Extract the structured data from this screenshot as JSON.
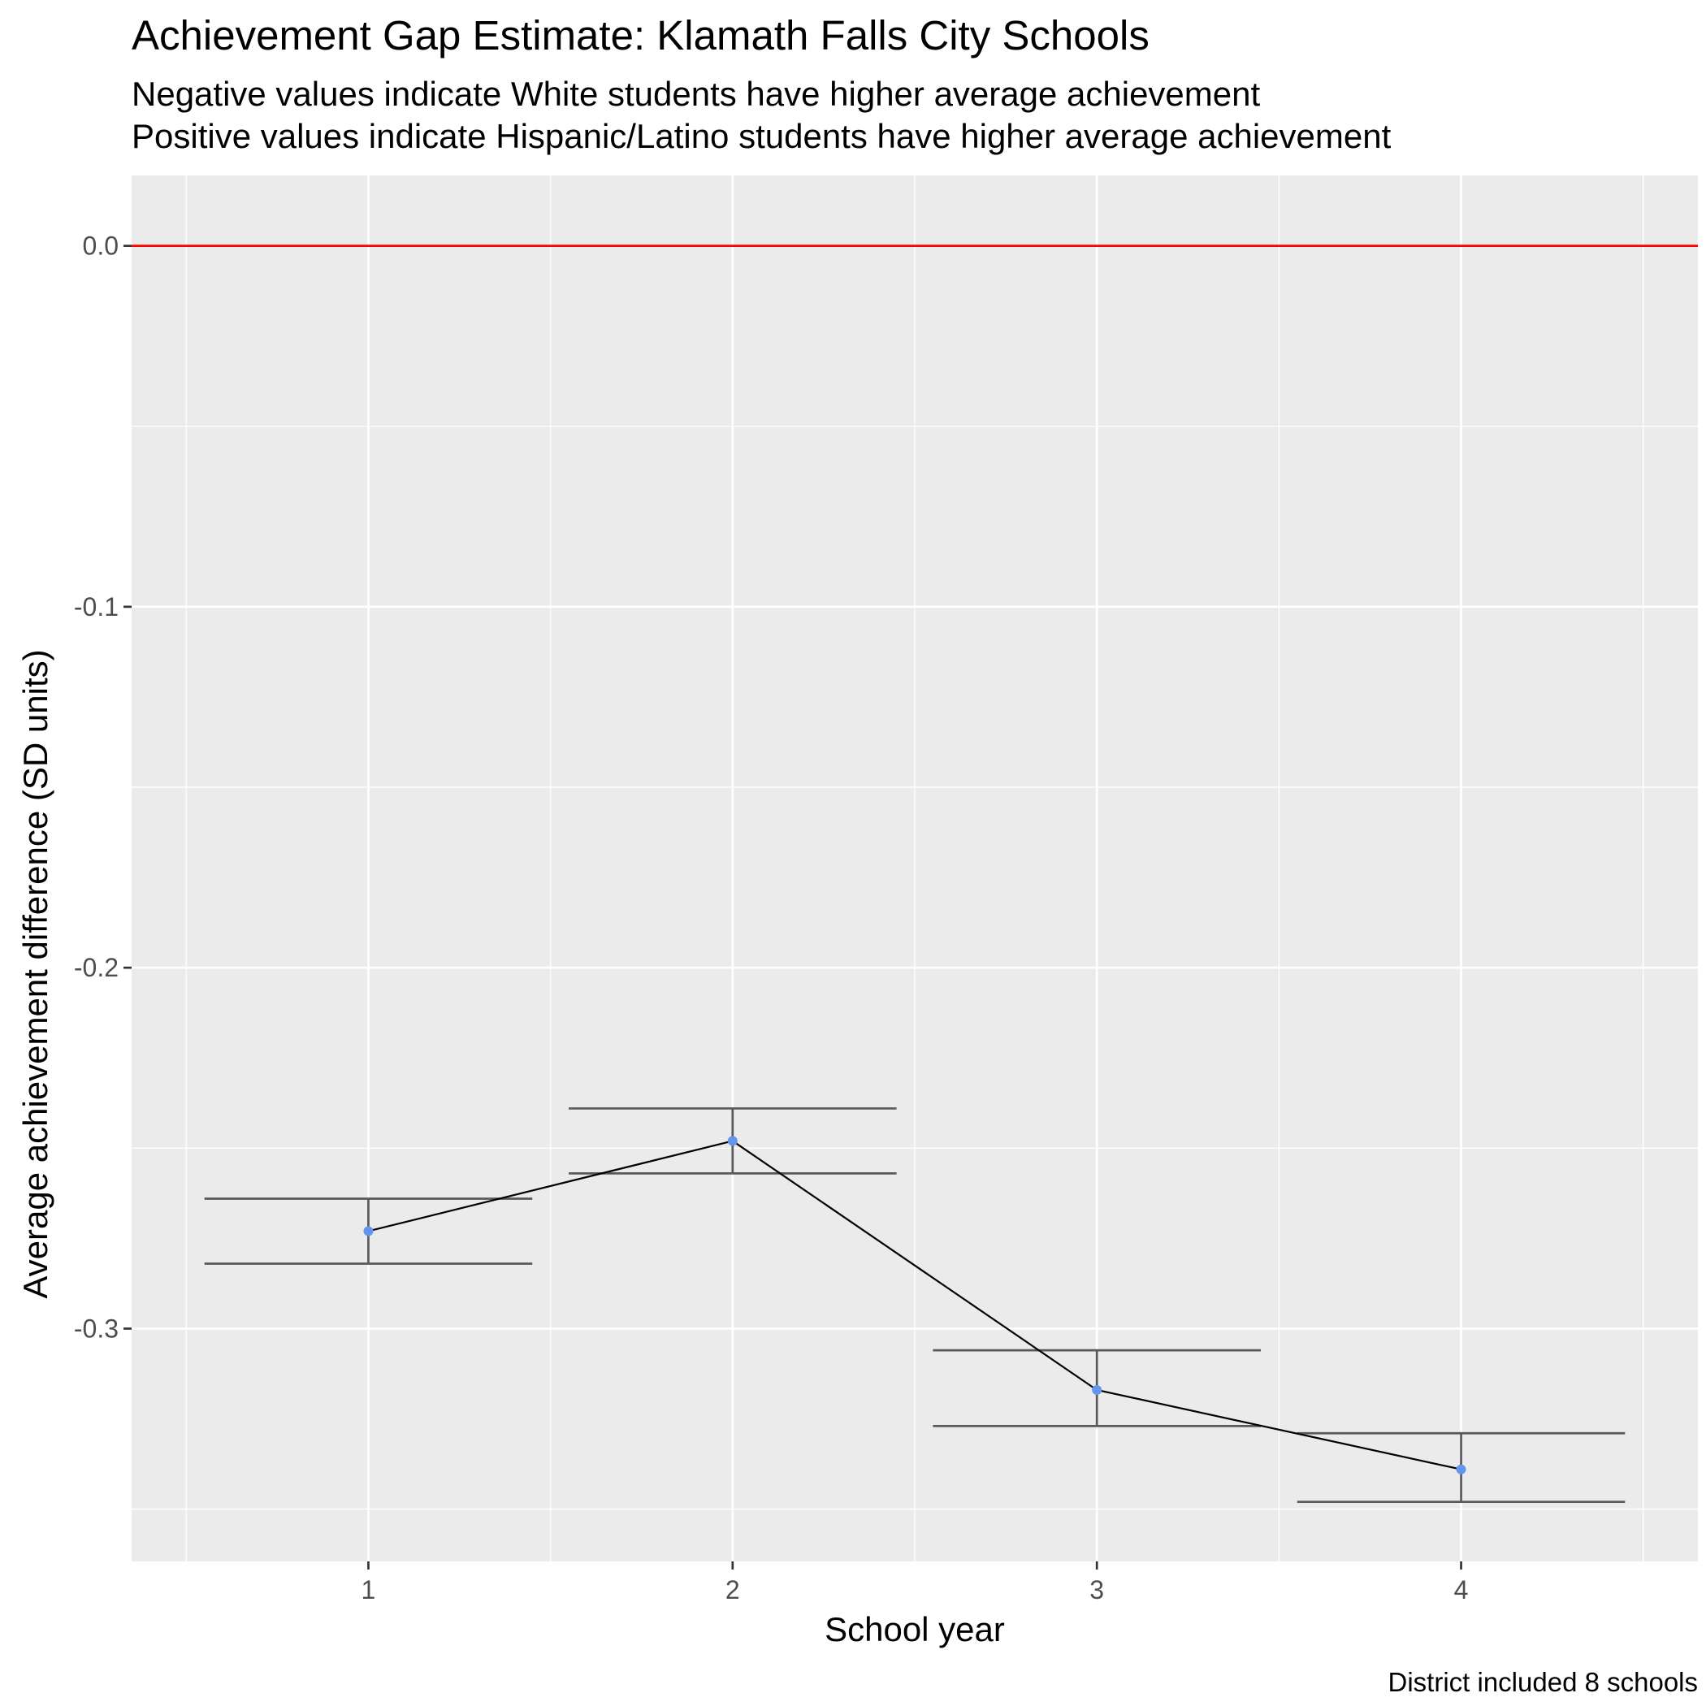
{
  "chart_data": {
    "type": "line",
    "title": "Achievement Gap Estimate: Klamath Falls City Schools",
    "subtitle": [
      "Negative values indicate White students have higher average achievement",
      "Positive values indicate Hispanic/Latino students have higher average achievement"
    ],
    "caption": "District included 8 schools",
    "xlabel": "School year",
    "ylabel": "Average achievement difference (SD units)",
    "xlim": [
      0.35,
      4.65
    ],
    "ylim": [
      -0.3645,
      0.0195
    ],
    "x_ticks": [
      1,
      2,
      3,
      4
    ],
    "y_ticks": [
      0.0,
      -0.1,
      -0.2,
      -0.3
    ],
    "y_tick_labels": [
      "0.0",
      "-0.1",
      "-0.2",
      "-0.3"
    ],
    "reference_line": {
      "y": 0,
      "color": "#ff0000"
    },
    "grid": true,
    "points": [
      {
        "x": 1,
        "y": -0.273,
        "ymin": -0.282,
        "ymax": -0.264
      },
      {
        "x": 2,
        "y": -0.248,
        "ymin": -0.257,
        "ymax": -0.239
      },
      {
        "x": 3,
        "y": -0.317,
        "ymin": -0.327,
        "ymax": -0.306
      },
      {
        "x": 4,
        "y": -0.339,
        "ymin": -0.348,
        "ymax": -0.329
      }
    ],
    "colors": {
      "panel": "#ebebeb",
      "grid": "#ffffff",
      "line": "#000000",
      "point": "#6495ed",
      "errorbar": "#595959",
      "reference": "#ff0000",
      "tick_text": "#4d4d4d"
    }
  }
}
